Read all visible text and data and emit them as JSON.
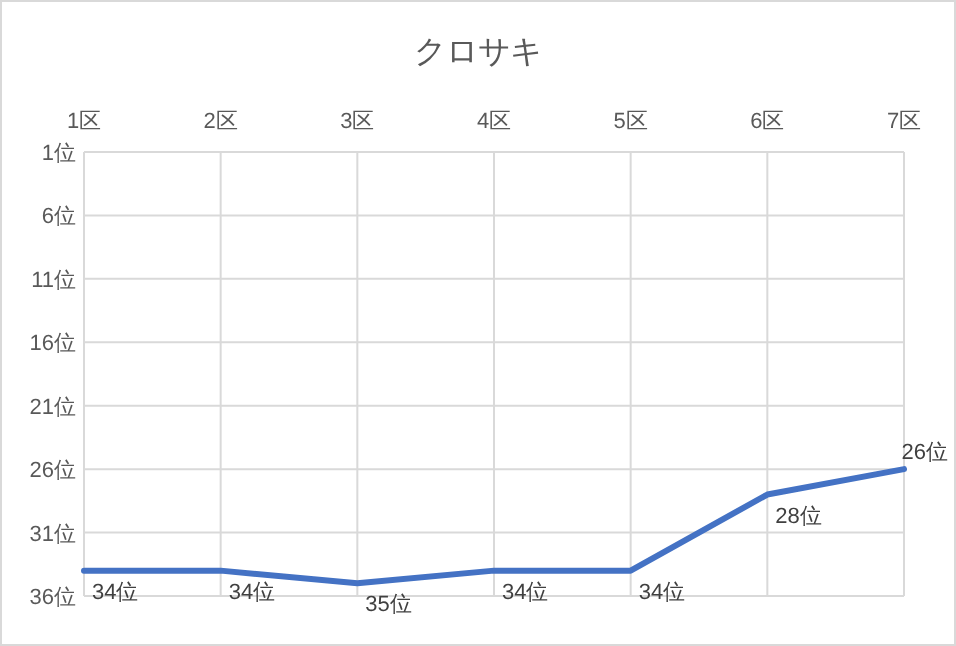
{
  "chart_data": {
    "type": "line",
    "title": "クロサキ",
    "categories": [
      "1区",
      "2区",
      "3区",
      "4区",
      "5区",
      "6区",
      "7区"
    ],
    "series": [
      {
        "color": "#4472c4",
        "values": [
          34,
          34,
          35,
          34,
          34,
          28,
          26
        ],
        "value_labels": [
          "34位",
          "34位",
          "35位",
          "34位",
          "34位",
          "28位",
          "26位"
        ]
      }
    ],
    "ylim": [
      36,
      1
    ],
    "yticks": [
      {
        "value": 1,
        "label": "1位"
      },
      {
        "value": 6,
        "label": "6位"
      },
      {
        "value": 11,
        "label": "11位"
      },
      {
        "value": 16,
        "label": "16位"
      },
      {
        "value": 21,
        "label": "21位"
      },
      {
        "value": 26,
        "label": "26位"
      },
      {
        "value": 31,
        "label": "31位"
      },
      {
        "value": 36,
        "label": "36位"
      }
    ],
    "grid": true,
    "marker": "none",
    "line_style": "solid"
  }
}
